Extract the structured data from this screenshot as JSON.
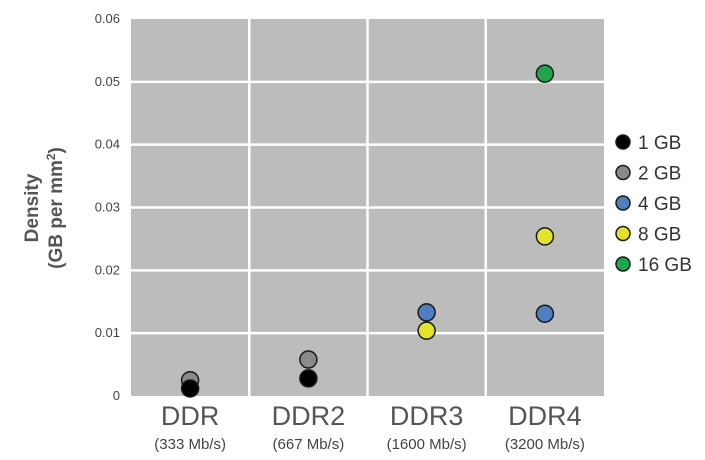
{
  "chart_data": {
    "type": "scatter",
    "ylabel_line1": "Density",
    "ylabel_line2_prefix": "(GB per mm",
    "ylabel_line2_sup": "2",
    "ylabel_line2_suffix": ")",
    "ylim": [
      0,
      0.06
    ],
    "yticks": [
      "0",
      "0.01",
      "0.02",
      "0.03",
      "0.04",
      "0.05",
      "0.06"
    ],
    "ytick_values": [
      0,
      0.01,
      0.02,
      0.03,
      0.04,
      0.05,
      0.06
    ],
    "categories": [
      "DDR",
      "DDR2",
      "DDR3",
      "DDR4"
    ],
    "category_sublabels": [
      "(333 Mb/s)",
      "(667 Mb/s)",
      "(1600 Mb/s)",
      "(3200 Mb/s)"
    ],
    "grid": true,
    "plot_background": "#bcbcbc",
    "grid_color": "#ffffff",
    "legend_position": "right",
    "series": [
      {
        "name": "1 GB",
        "color": "#000000",
        "values": [
          0.0012,
          0.0028,
          null,
          null
        ]
      },
      {
        "name": "2 GB",
        "color": "#8a8a8a",
        "values": [
          0.0025,
          0.0058,
          null,
          null
        ]
      },
      {
        "name": "4 GB",
        "color": "#4f7fc1",
        "values": [
          null,
          null,
          0.0133,
          0.0131
        ]
      },
      {
        "name": "8 GB",
        "color": "#e3e32b",
        "values": [
          null,
          null,
          0.0104,
          0.0254
        ]
      },
      {
        "name": "16 GB",
        "color": "#1fa64a",
        "values": [
          null,
          null,
          null,
          0.0513
        ]
      }
    ]
  }
}
